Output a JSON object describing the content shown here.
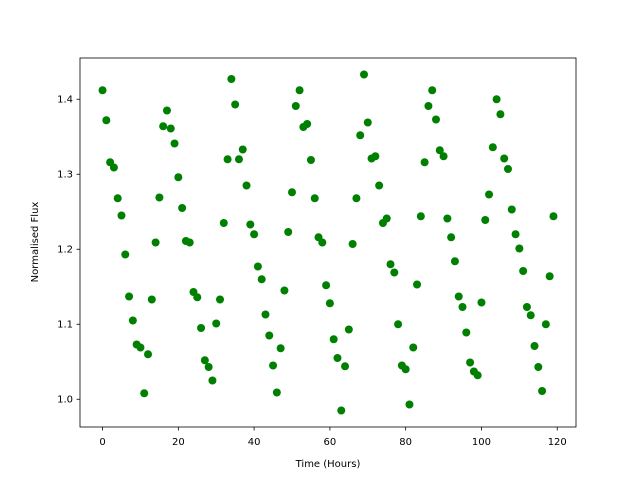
{
  "chart_data": {
    "type": "scatter",
    "x_label": "Time (Hours)",
    "y_label": "Normalised Flux",
    "x": [
      0,
      1,
      2,
      3,
      4,
      5,
      6,
      7,
      8,
      9,
      10,
      11,
      12,
      13,
      14,
      15,
      16,
      17,
      18,
      19,
      20,
      21,
      22,
      23,
      24,
      25,
      26,
      27,
      28,
      29,
      30,
      31,
      32,
      33,
      34,
      35,
      36,
      37,
      38,
      39,
      40,
      41,
      42,
      43,
      44,
      45,
      46,
      47,
      48,
      49,
      50,
      51,
      52,
      53,
      54,
      55,
      56,
      57,
      58,
      59,
      60,
      61,
      62,
      63,
      64,
      65,
      66,
      67,
      68,
      69,
      70,
      71,
      72,
      73,
      74,
      75,
      76,
      77,
      78,
      79,
      80,
      81,
      82,
      83,
      84,
      85,
      86,
      87,
      88,
      89,
      90,
      91,
      92,
      93,
      94,
      95,
      96,
      97,
      98,
      99,
      100,
      101,
      102,
      103,
      104,
      105,
      106,
      107,
      108,
      109,
      110,
      111,
      112,
      113,
      114,
      115,
      116,
      117,
      118,
      119
    ],
    "series": [
      {
        "color": "#008000",
        "values": [
          1.412,
          1.372,
          1.316,
          1.309,
          1.268,
          1.245,
          1.193,
          1.137,
          1.105,
          1.073,
          1.069,
          1.008,
          1.06,
          1.133,
          1.209,
          1.269,
          1.364,
          1.385,
          1.361,
          1.341,
          1.296,
          1.255,
          1.211,
          1.209,
          1.143,
          1.136,
          1.095,
          1.052,
          1.043,
          1.025,
          1.101,
          1.133,
          1.235,
          1.32,
          1.427,
          1.393,
          1.32,
          1.333,
          1.285,
          1.233,
          1.22,
          1.177,
          1.16,
          1.113,
          1.085,
          1.045,
          1.009,
          1.068,
          1.145,
          1.223,
          1.276,
          1.391,
          1.412,
          1.363,
          1.367,
          1.319,
          1.268,
          1.216,
          1.209,
          1.152,
          1.128,
          1.08,
          1.055,
          0.985,
          1.044,
          1.093,
          1.207,
          1.268,
          1.352,
          1.433,
          1.369,
          1.321,
          1.324,
          1.285,
          1.235,
          1.241,
          1.18,
          1.169,
          1.1,
          1.045,
          1.04,
          0.993,
          1.069,
          1.153,
          1.244,
          1.316,
          1.391,
          1.412,
          1.373,
          1.332,
          1.324,
          1.241,
          1.216,
          1.184,
          1.137,
          1.123,
          1.089,
          1.049,
          1.037,
          1.032,
          1.129,
          1.239,
          1.273,
          1.336,
          1.4,
          1.38,
          1.321,
          1.307,
          1.253,
          1.22,
          1.201,
          1.171,
          1.123,
          1.112,
          1.071,
          1.043,
          1.011,
          1.1,
          1.164,
          1.244
        ]
      }
    ],
    "xlim": [
      -5.95,
      124.95
    ],
    "xticks": [
      0,
      20,
      40,
      60,
      80,
      100,
      120
    ],
    "ylim": [
      0.963,
      1.455
    ],
    "yticks": [
      {
        "value": 1.0,
        "label": "1.0"
      },
      1.1,
      1.2,
      1.3,
      1.4
    ]
  }
}
